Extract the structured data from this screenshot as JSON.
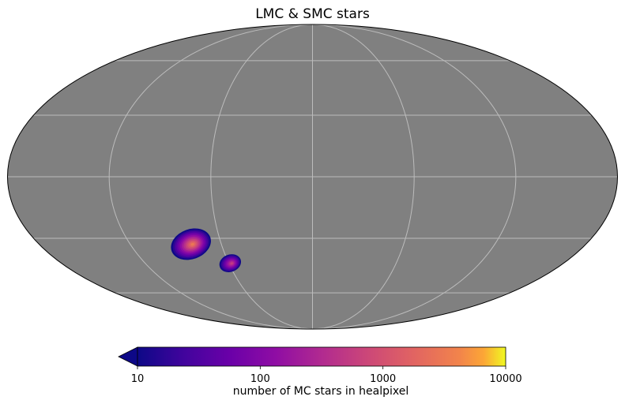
{
  "chart_data": {
    "type": "heatmap",
    "projection": "mollweide",
    "title": "LMC & SMC stars",
    "map_background_color": "#808080",
    "graticule_color": "#bcbcbc",
    "graticule": true,
    "colormap": "plasma",
    "colorbar": {
      "label": "number of MC stars in healpixel",
      "scale": "log",
      "range": [
        10,
        10000
      ],
      "ticks": [
        {
          "value": 10,
          "label": "10"
        },
        {
          "value": 100,
          "label": "100"
        },
        {
          "value": 1000,
          "label": "1000"
        },
        {
          "value": 10000,
          "label": "10000"
        }
      ],
      "extend": "min",
      "position": "bottom"
    },
    "clouds": [
      {
        "name": "LMC",
        "lon_deg": 80,
        "lat_deg": -33,
        "peak_count": 3000,
        "edge_count": 10
      },
      {
        "name": "SMC",
        "lon_deg": 59,
        "lat_deg": -43,
        "peak_count": 600,
        "edge_count": 10
      }
    ]
  }
}
